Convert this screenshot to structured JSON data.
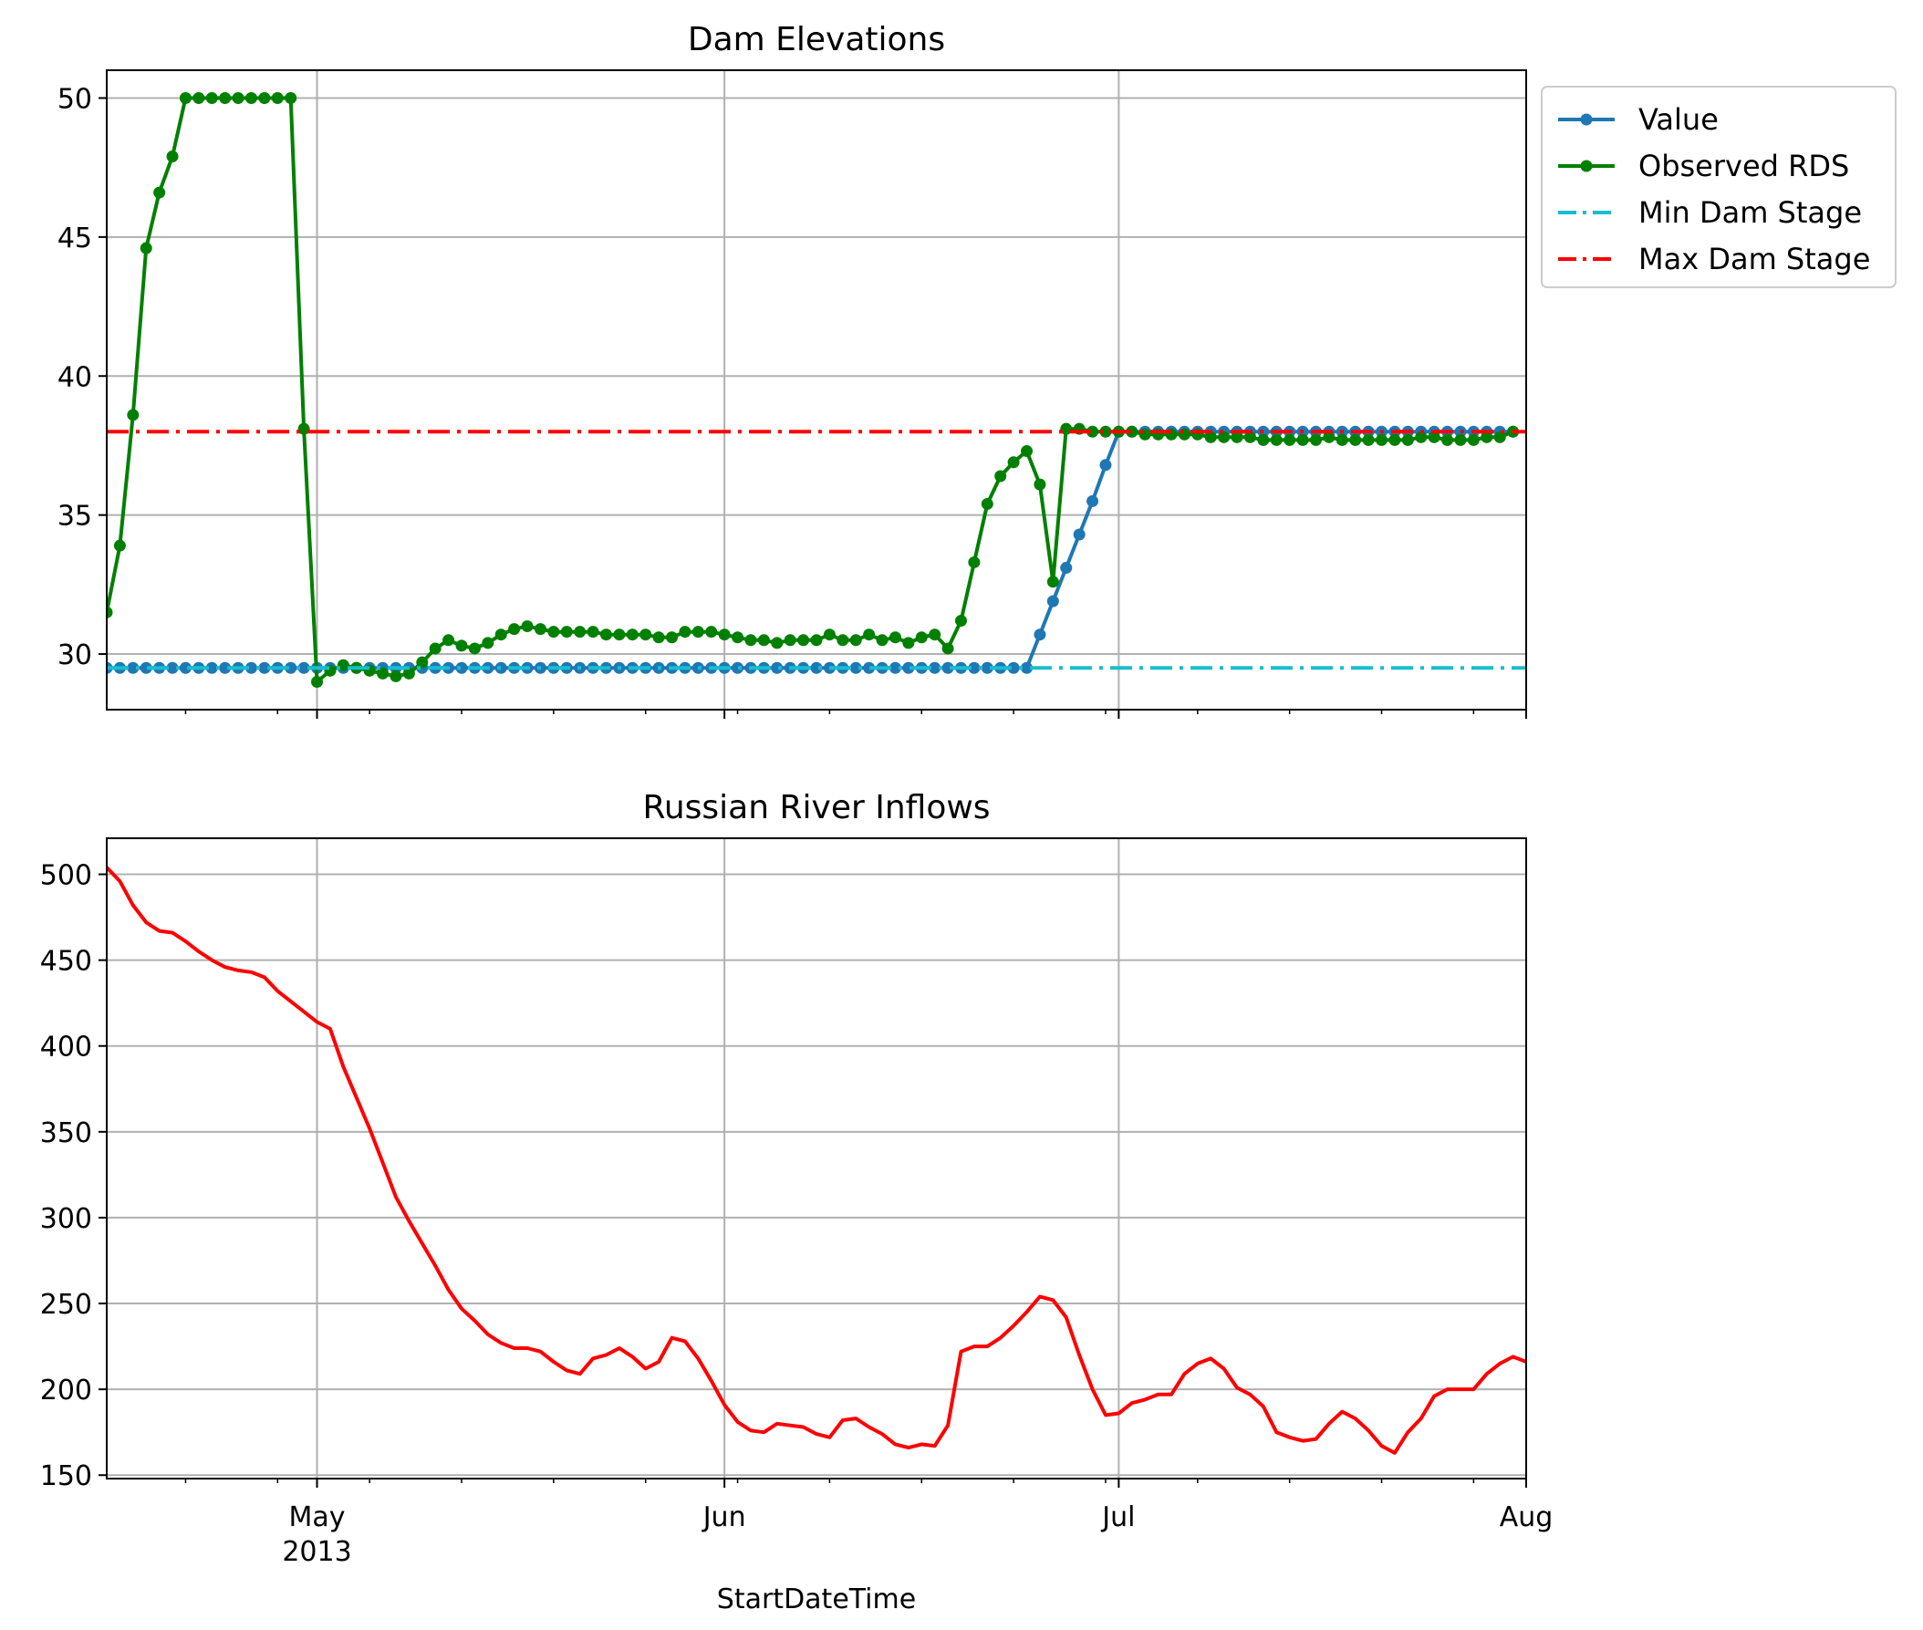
{
  "figure": {
    "xlabel": "StartDateTime",
    "x_tick_labels": [
      {
        "date": "2013-05-01",
        "label": "May",
        "sublabel": "2013"
      },
      {
        "date": "2013-06-01",
        "label": "Jun",
        "sublabel": ""
      },
      {
        "date": "2013-07-01",
        "label": "Jul",
        "sublabel": ""
      },
      {
        "date": "2013-08-01",
        "label": "Aug",
        "sublabel": ""
      }
    ],
    "xlim": [
      "2013-04-15",
      "2013-08-01"
    ]
  },
  "chart_data": [
    {
      "type": "line",
      "title": "Dam Elevations",
      "ylim": [
        28,
        51
      ],
      "yticks": [
        30,
        35,
        40,
        45,
        50
      ],
      "grid": true,
      "legend_position": "outside upper-right",
      "series": [
        {
          "name": "Value",
          "color": "#1f77b4",
          "marker": "dot",
          "x_start": "2013-04-15",
          "step_days": 1,
          "values": [
            29.5,
            29.5,
            29.5,
            29.5,
            29.5,
            29.5,
            29.5,
            29.5,
            29.5,
            29.5,
            29.5,
            29.5,
            29.5,
            29.5,
            29.5,
            29.5,
            29.5,
            29.5,
            29.5,
            29.5,
            29.5,
            29.5,
            29.5,
            29.5,
            29.5,
            29.5,
            29.5,
            29.5,
            29.5,
            29.5,
            29.5,
            29.5,
            29.5,
            29.5,
            29.5,
            29.5,
            29.5,
            29.5,
            29.5,
            29.5,
            29.5,
            29.5,
            29.5,
            29.5,
            29.5,
            29.5,
            29.5,
            29.5,
            29.5,
            29.5,
            29.5,
            29.5,
            29.5,
            29.5,
            29.5,
            29.5,
            29.5,
            29.5,
            29.5,
            29.5,
            29.5,
            29.5,
            29.5,
            29.5,
            29.5,
            29.5,
            29.5,
            29.5,
            29.5,
            29.5,
            29.5,
            30.7,
            31.9,
            33.1,
            34.3,
            35.5,
            36.8,
            38.0,
            38.0,
            38.0,
            38.0,
            38.0,
            38.0,
            38.0,
            38.0,
            38.0,
            38.0,
            38.0,
            38.0,
            38.0,
            38.0,
            38.0,
            38.0,
            38.0,
            38.0,
            38.0,
            38.0,
            38.0,
            38.0,
            38.0,
            38.0,
            38.0,
            38.0,
            38.0,
            38.0,
            38.0,
            38.0,
            38.0
          ]
        },
        {
          "name": "Observed RDS",
          "color": "#008000",
          "marker": "dot",
          "x_start": "2013-04-15",
          "step_days": 1,
          "values": [
            31.5,
            33.9,
            38.6,
            44.6,
            46.6,
            47.9,
            50.0,
            50.0,
            50.0,
            50.0,
            50.0,
            50.0,
            50.0,
            50.0,
            50.0,
            38.1,
            29.0,
            29.4,
            29.6,
            29.5,
            29.4,
            29.3,
            29.2,
            29.3,
            29.7,
            30.2,
            30.5,
            30.3,
            30.2,
            30.4,
            30.7,
            30.9,
            31.0,
            30.9,
            30.8,
            30.8,
            30.8,
            30.8,
            30.7,
            30.7,
            30.7,
            30.7,
            30.6,
            30.6,
            30.8,
            30.8,
            30.8,
            30.7,
            30.6,
            30.5,
            30.5,
            30.4,
            30.5,
            30.5,
            30.5,
            30.7,
            30.5,
            30.5,
            30.7,
            30.5,
            30.6,
            30.4,
            30.6,
            30.7,
            30.2,
            31.2,
            33.3,
            35.4,
            36.4,
            36.9,
            37.3,
            36.1,
            32.6,
            38.1,
            38.1,
            38.0,
            38.0,
            38.0,
            38.0,
            37.9,
            37.9,
            37.9,
            37.9,
            37.9,
            37.8,
            37.8,
            37.8,
            37.8,
            37.7,
            37.7,
            37.7,
            37.7,
            37.7,
            37.8,
            37.7,
            37.7,
            37.7,
            37.7,
            37.7,
            37.7,
            37.8,
            37.8,
            37.7,
            37.7,
            37.7,
            37.8,
            37.8,
            38.0
          ]
        },
        {
          "name": "Min Dam Stage",
          "color": "#17becf",
          "linestyle": "dashdot",
          "constant": 29.5
        },
        {
          "name": "Max Dam Stage",
          "color": "#ff0000",
          "linestyle": "dashdot",
          "constant": 38.0
        }
      ]
    },
    {
      "type": "line",
      "title": "Russian River Inflows",
      "ylim": [
        148,
        521
      ],
      "yticks": [
        150,
        200,
        250,
        300,
        350,
        400,
        450,
        500
      ],
      "grid": true,
      "series": [
        {
          "color": "#ff0000",
          "x_start": "2013-04-15",
          "step_days": 1,
          "values": [
            504,
            496,
            482,
            472,
            467,
            466,
            461,
            455,
            450,
            446,
            444,
            443,
            440,
            432,
            426,
            420,
            414,
            410,
            388,
            370,
            352,
            332,
            312,
            298,
            285,
            272,
            258,
            247,
            240,
            232,
            227,
            224,
            224,
            222,
            216,
            211,
            209,
            218,
            220,
            224,
            219,
            212,
            216,
            230,
            228,
            218,
            205,
            191,
            181,
            176,
            175,
            180,
            179,
            178,
            174,
            172,
            182,
            183,
            178,
            174,
            168,
            166,
            168,
            167,
            179,
            222,
            225,
            225,
            230,
            237,
            245,
            254,
            252,
            242,
            220,
            200,
            185,
            186,
            192,
            194,
            197,
            197,
            209,
            215,
            218,
            212,
            201,
            197,
            190,
            175,
            172,
            170,
            171,
            180,
            187,
            183,
            176,
            167,
            163,
            175,
            183,
            196,
            200,
            200,
            200,
            209,
            215,
            219,
            216
          ]
        }
      ]
    }
  ]
}
